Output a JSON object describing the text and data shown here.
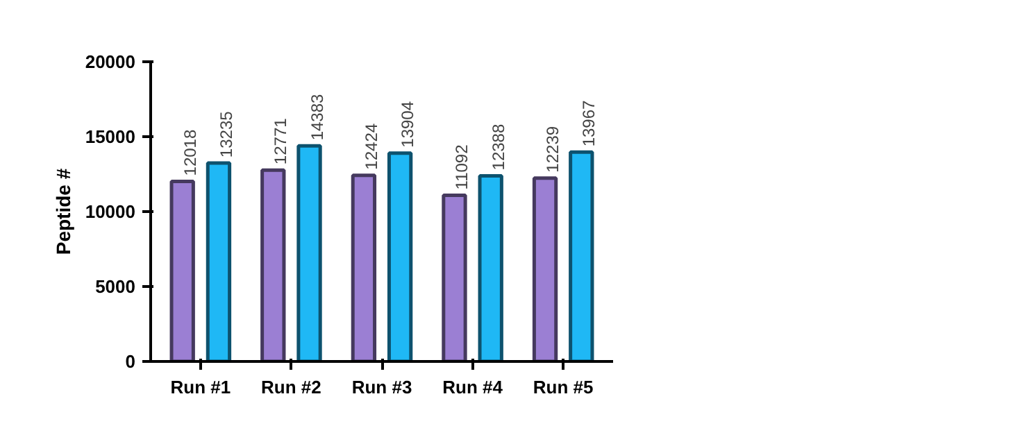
{
  "chart_data": {
    "type": "bar",
    "ylabel": "Peptide #",
    "categories": [
      "Run #1",
      "Run #2",
      "Run #3",
      "Run #4",
      "Run #5"
    ],
    "series": [
      {
        "color": "#9b7fd3",
        "values": [
          12018,
          12771,
          12424,
          11092,
          12239
        ]
      },
      {
        "color": "#1fb8f5",
        "values": [
          13235,
          14383,
          13904,
          12388,
          13967
        ]
      }
    ],
    "ylim": [
      0,
      20000
    ],
    "yticks": [
      0,
      5000,
      10000,
      15000,
      20000
    ],
    "data_labels": true,
    "grid": false
  }
}
